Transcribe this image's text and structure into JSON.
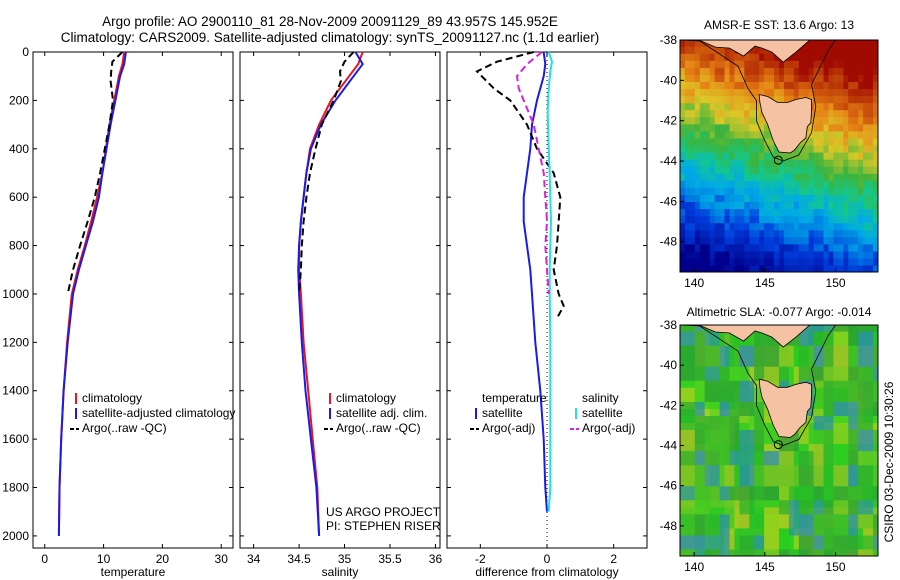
{
  "header": {
    "line1": "Argo profile: AO 2900110_81 28-Nov-2009 20091129_89 43.957S 145.952E",
    "line2": "Climatology: CARS2009. Satellite-adjusted climatology: synTS_20091127.nc (1.1d earlier)"
  },
  "colors": {
    "red": "#e8141e",
    "blue": "#1a1aee",
    "black": "#000000",
    "cyan": "#20e0e8",
    "magenta": "#e020d8"
  },
  "chart_data": [
    {
      "type": "line",
      "panel": "temperature",
      "xlabel": "temperature",
      "ylabel": "",
      "xlim": [
        -2,
        32
      ],
      "ylim": [
        2050,
        0
      ],
      "xticks": [
        0,
        10,
        20,
        30
      ],
      "yticks": [
        0,
        200,
        400,
        600,
        800,
        1000,
        1200,
        1400,
        1600,
        1800,
        2000
      ],
      "legend": {
        "placement": "lower-center",
        "entries": [
          "climatology",
          "satellite-adjusted climatology",
          "Argo(..raw -QC)"
        ]
      },
      "series": [
        {
          "name": "climatology",
          "color": "red",
          "x": [
            13.5,
            13.2,
            12.6,
            11.8,
            11,
            10.4,
            9.8,
            8.9,
            7.9,
            6.8,
            5.6,
            4.6,
            3.8,
            3.2,
            2.8,
            2.5,
            2.4
          ],
          "y": [
            0,
            50,
            100,
            200,
            300,
            400,
            500,
            600,
            700,
            800,
            900,
            1000,
            1200,
            1400,
            1600,
            1800,
            2000
          ]
        },
        {
          "name": "satellite-adjusted climatology",
          "color": "blue",
          "x": [
            13.8,
            13.5,
            12.8,
            12,
            11.2,
            10.5,
            9.8,
            9.2,
            8.2,
            7,
            5.8,
            4.8,
            3.9,
            3.2,
            2.8,
            2.5,
            2.4
          ],
          "y": [
            0,
            50,
            100,
            200,
            300,
            400,
            500,
            600,
            700,
            800,
            900,
            1000,
            1200,
            1400,
            1600,
            1800,
            2000
          ]
        },
        {
          "name": "Argo(..raw -QC)",
          "color": "black",
          "dashed": true,
          "x": [
            13.2,
            11.5,
            11.3,
            11.2,
            11.6,
            11,
            10.2,
            9.4,
            8.5,
            7.3,
            6,
            4.8,
            3.9
          ],
          "y": [
            0,
            40,
            80,
            120,
            200,
            300,
            400,
            500,
            600,
            700,
            800,
            900,
            1000
          ]
        }
      ]
    },
    {
      "type": "line",
      "panel": "salinity",
      "xlabel": "salinity",
      "ylabel": "",
      "xlim": [
        33.85,
        36.05
      ],
      "ylim": [
        2050,
        0
      ],
      "xticks": [
        34,
        34.5,
        35,
        35.5,
        36
      ],
      "xticklabels": [
        "34",
        "34.5",
        "35",
        "35.5",
        "36"
      ],
      "legend": {
        "placement": "lower-center",
        "entries": [
          "climatology",
          "satellite adj. clim.",
          "Argo(..raw -QC)"
        ]
      },
      "annotations": [
        "US ARGO PROJECT",
        "PI: STEPHEN RISER"
      ],
      "series": [
        {
          "name": "climatology",
          "color": "red",
          "x": [
            35.2,
            35.15,
            35.05,
            34.85,
            34.72,
            34.62,
            34.58,
            34.55,
            34.52,
            34.5,
            34.5,
            34.52,
            34.55,
            34.6,
            34.65,
            34.7,
            34.72
          ],
          "y": [
            0,
            50,
            100,
            200,
            300,
            400,
            500,
            600,
            700,
            800,
            900,
            1000,
            1200,
            1400,
            1600,
            1800,
            2000
          ]
        },
        {
          "name": "satellite adj. clim.",
          "color": "blue",
          "x": [
            35.12,
            35.2,
            35.1,
            34.9,
            34.74,
            34.63,
            34.58,
            34.55,
            34.52,
            34.5,
            34.49,
            34.5,
            34.53,
            34.57,
            34.63,
            34.69,
            34.72
          ],
          "y": [
            0,
            50,
            100,
            200,
            300,
            400,
            500,
            600,
            700,
            800,
            900,
            1000,
            1200,
            1400,
            1600,
            1800,
            2000
          ]
        },
        {
          "name": "Argo(..raw -QC)",
          "color": "black",
          "dashed": true,
          "x": [
            35.1,
            35.0,
            34.95,
            34.96,
            34.88,
            34.75,
            34.68,
            34.62,
            34.58,
            34.55,
            34.53,
            34.52,
            34.5
          ],
          "y": [
            0,
            40,
            80,
            120,
            200,
            300,
            400,
            500,
            600,
            700,
            800,
            900,
            1000
          ]
        }
      ]
    },
    {
      "type": "line",
      "panel": "difference",
      "xlabel": "difference from climatology",
      "ylabel": "",
      "xlim": [
        -3,
        3
      ],
      "ylim": [
        2050,
        0
      ],
      "xticks": [
        -2,
        0,
        2
      ],
      "legend": {
        "placement": "lower-center",
        "entries": [
          "temperature",
          "satellite",
          "Argo(-adj)",
          "salinity",
          "satellite",
          "Argo(-adj)"
        ]
      },
      "series": [
        {
          "name": "satellite",
          "group": "temperature",
          "color": "blue",
          "x": [
            -0.1,
            -0.05,
            -0.1,
            -0.3,
            -0.45,
            -0.5,
            -0.6,
            -0.7,
            -0.7,
            -0.6,
            -0.5,
            -0.45,
            -0.35,
            -0.2,
            -0.1,
            -0.05,
            0
          ],
          "y": [
            0,
            50,
            100,
            200,
            300,
            400,
            500,
            600,
            700,
            800,
            900,
            1000,
            1200,
            1400,
            1600,
            1800,
            1900
          ]
        },
        {
          "name": "Argo(-adj)",
          "group": "temperature",
          "color": "black",
          "dashed": true,
          "x": [
            -0.4,
            -1.5,
            -2.1,
            -1.6,
            -1.1,
            -0.6,
            -0.3,
            0.2,
            0.4,
            0.35,
            0.3,
            0.2,
            0.35,
            0.5,
            0.3
          ],
          "y": [
            0,
            40,
            80,
            150,
            200,
            300,
            400,
            500,
            600,
            700,
            800,
            900,
            1000,
            1050,
            1100
          ]
        },
        {
          "name": "satellite",
          "group": "salinity",
          "color": "cyan",
          "x": [
            0.05,
            0.15,
            0.1,
            0.05,
            0.02,
            0.05,
            0.08,
            0.1,
            0.12,
            0.1,
            0.08,
            0.08,
            0.1,
            0.1,
            0.1,
            0.1,
            0.05
          ],
          "y": [
            0,
            40,
            80,
            150,
            250,
            400,
            500,
            600,
            700,
            800,
            900,
            1000,
            1200,
            1400,
            1600,
            1800,
            1900
          ]
        },
        {
          "name": "Argo(-adj)",
          "group": "salinity",
          "color": "magenta",
          "dashed": true,
          "x": [
            -0.15,
            -0.6,
            -0.9,
            -0.85,
            -0.7,
            -0.4,
            -0.25,
            -0.1,
            -0.05,
            0,
            -0.05,
            0,
            0.05
          ],
          "y": [
            0,
            50,
            100,
            150,
            200,
            300,
            400,
            500,
            600,
            700,
            800,
            900,
            1000
          ]
        }
      ]
    },
    {
      "type": "heatmap",
      "panel": "sst-map",
      "title": "AMSR-E SST: 13.6 Argo: 13",
      "xlim": [
        139,
        153
      ],
      "ylim": [
        -49.5,
        -38
      ],
      "xticks": [
        140,
        145,
        150
      ],
      "yticks": [
        -38,
        -40,
        -42,
        -44,
        -46,
        -48
      ],
      "marker": {
        "lon": 145.952,
        "lat": -43.957
      }
    },
    {
      "type": "heatmap",
      "panel": "sla-map",
      "title": "Altimetric SLA: -0.077 Argo: -0.014",
      "xlim": [
        139,
        153
      ],
      "ylim": [
        -49.5,
        -38
      ],
      "xticks": [
        140,
        145,
        150
      ],
      "yticks": [
        -38,
        -40,
        -42,
        -44,
        -46,
        -48
      ],
      "marker": {
        "lon": 145.952,
        "lat": -43.957
      }
    }
  ],
  "footer": {
    "stamp": "CSIRO 03-Dec-2009 10:30:26"
  }
}
